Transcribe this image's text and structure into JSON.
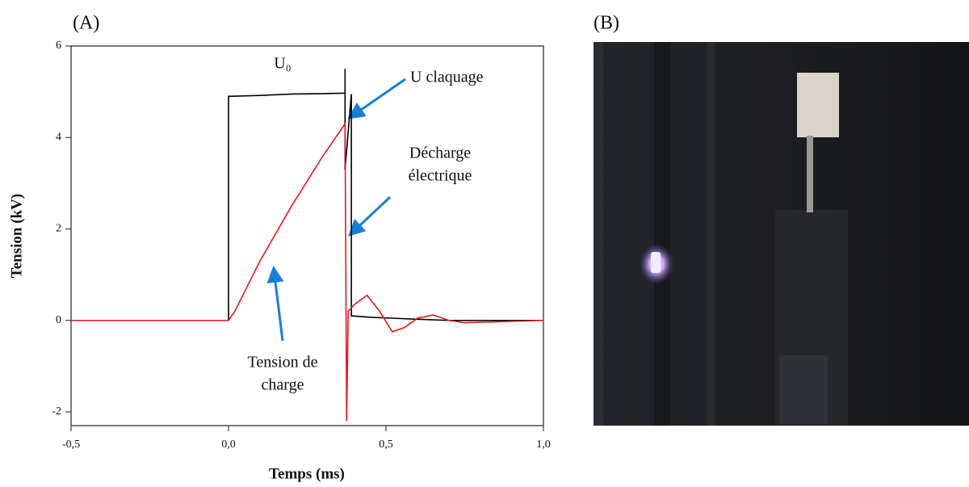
{
  "panel_labels": [
    "(A)",
    "(B)"
  ],
  "chart_data": {
    "type": "line",
    "x_label": "Temps (ms)",
    "y_label": "Tension (kV)",
    "xlim": [
      -0.5,
      1.0
    ],
    "xticks": [
      {
        "value": -0.5,
        "label": "-0,5"
      },
      {
        "value": 0,
        "label": "0,0"
      },
      {
        "value": 0.5,
        "label": "0,5"
      },
      {
        "value": 1.0,
        "label": "1,0"
      }
    ],
    "ylim": [
      -2.3,
      6
    ],
    "yticks": [
      -2,
      0,
      2,
      4,
      6
    ],
    "series": [
      {
        "color": "#000000",
        "x": [
          -0.5,
          0,
          0,
          0.1,
          0.2,
          0.3,
          0.37,
          0.37,
          0.37,
          0.39,
          0.39,
          0.45,
          0.55,
          0.7,
          1.0
        ],
        "values": [
          0,
          0,
          4.9,
          4.92,
          4.95,
          4.96,
          4.97,
          5.5,
          3.3,
          4.95,
          0.1,
          0.07,
          0.04,
          0,
          0
        ]
      },
      {
        "color": "#e31a1c",
        "x": [
          -0.5,
          0,
          0.02,
          0.1,
          0.2,
          0.3,
          0.37,
          0.375,
          0.38,
          0.4,
          0.44,
          0.48,
          0.52,
          0.56,
          0.6,
          0.65,
          0.7,
          0.75,
          1.0
        ],
        "values": [
          0,
          0,
          0.2,
          1.3,
          2.5,
          3.6,
          4.3,
          -2.2,
          0.2,
          0.35,
          0.55,
          0.2,
          -0.25,
          -0.15,
          0.05,
          0.12,
          0,
          -0.05,
          0
        ]
      }
    ],
    "annotations": [
      {
        "text": [
          "U₀"
        ]
      },
      {
        "text": [
          "U claquage"
        ]
      },
      {
        "text": [
          "Décharge",
          "électrique"
        ]
      },
      {
        "text": [
          "Tension de",
          "charge"
        ]
      }
    ]
  }
}
